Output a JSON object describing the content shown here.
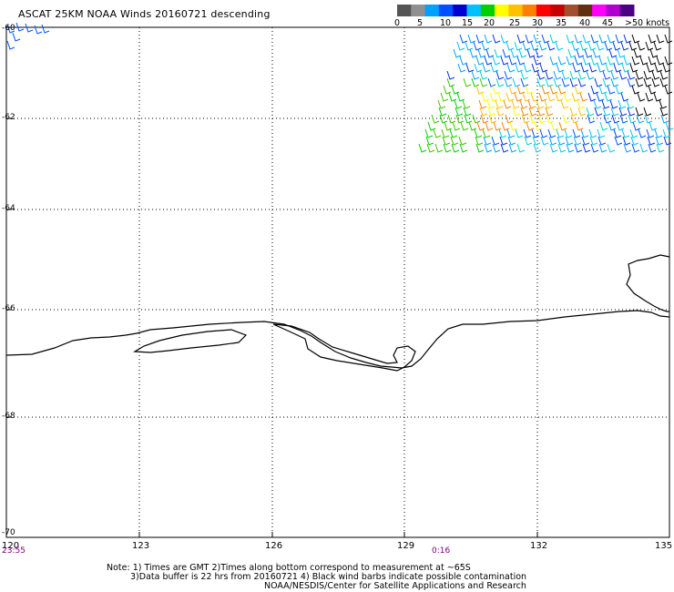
{
  "title": "ASCAT 25KM NOAA Winds 20160721 descending",
  "legend": {
    "labels": [
      "0",
      "5",
      "10",
      "15",
      "20",
      "25",
      "30",
      "35",
      "40",
      "45",
      ">50 knots"
    ],
    "colors": [
      "#555555",
      "#909090",
      "#00a0ff",
      "#0050ff",
      "#0000d0",
      "#00c0ff",
      "#00d000",
      "#ffff00",
      "#ffc000",
      "#ff8000",
      "#ff0000",
      "#c80000",
      "#a05030",
      "#603010",
      "#ff00ff",
      "#b000d0",
      "#4b0082"
    ]
  },
  "map": {
    "lat_labels": [
      "-60",
      "-62",
      "-64",
      "-66",
      "-68",
      "-70"
    ],
    "lon_labels": [
      "120",
      "123",
      "126",
      "129",
      "132",
      "135"
    ],
    "time_labels": [
      "23:55",
      "0:16"
    ],
    "lon_range": [
      120,
      135
    ],
    "lat_range": [
      -60,
      -70
    ]
  },
  "footnote": {
    "line1": "Note: 1) Times are GMT 2)Times along bottom correspond to measurement at ~65S",
    "line2": "3)Data buffer is 22 hrs from 20160721 4) Black wind barbs indicate possible contamination",
    "line3": "NOAA/NESDIS/Center for Satellite Applications and Research"
  },
  "colors": {
    "coastline": "#000000",
    "grid": "#000000",
    "time": "#800080"
  }
}
